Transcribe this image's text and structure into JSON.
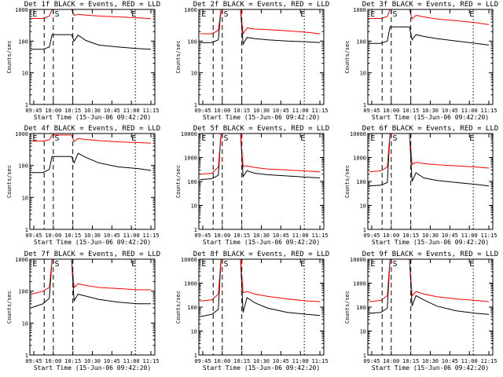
{
  "chart_data": [
    {
      "type": "line",
      "title": "Det 1f BLACK = Events, RED = LLD",
      "xlabel": "Start Time (15-Jun-06 09:42:20)",
      "ylabel": "Counts/sec",
      "yscale": "log",
      "ylim": [
        1,
        1000
      ],
      "xticks": [
        "09:45",
        "10:00",
        "10:15",
        "10:30",
        "10:45",
        "11:00",
        "11:15"
      ],
      "yticks": [
        "1",
        "10",
        "100",
        "1000"
      ],
      "markers": [
        "E",
        "S",
        "E"
      ],
      "series": [
        {
          "color": "#000000",
          "x": [
            "09:43",
            "09:52",
            "09:57",
            "09:59",
            "10:05",
            "10:14",
            "10:16",
            "10:19",
            "10:25",
            "10:35",
            "10:50",
            "11:05",
            "11:15"
          ],
          "y": [
            55,
            55,
            65,
            160,
            160,
            160,
            100,
            155,
            105,
            75,
            65,
            58,
            55
          ]
        },
        {
          "color": "#ff0000",
          "x": [
            "09:43",
            "09:52",
            "09:57",
            "09:59",
            "10:05",
            "10:14",
            "10:16",
            "10:19",
            "10:25",
            "10:35",
            "10:50",
            "11:05",
            "11:15"
          ],
          "y": [
            520,
            520,
            620,
            1000,
            1000,
            1000,
            650,
            700,
            660,
            620,
            580,
            540,
            510
          ]
        }
      ]
    },
    {
      "type": "line",
      "title": "Det 2f BLACK = Events, RED = LLD",
      "xlabel": "Start Time (15-Jun-06 09:42:20)",
      "ylabel": "Counts/sec",
      "yscale": "log",
      "ylim": [
        1,
        1000
      ],
      "xticks": [
        "09:45",
        "10:00",
        "10:15",
        "10:30",
        "10:45",
        "11:00",
        "11:15"
      ],
      "yticks": [
        "1",
        "10",
        "100",
        "1000"
      ],
      "markers": [
        "E",
        "S",
        "E"
      ],
      "series": [
        {
          "color": "#000000",
          "x": [
            "09:43",
            "09:52",
            "09:57",
            "09:59",
            "10:05",
            "10:14",
            "10:16",
            "10:19",
            "10:25",
            "10:35",
            "10:50",
            "11:05",
            "11:15"
          ],
          "y": [
            90,
            90,
            110,
            1000,
            1000,
            1000,
            80,
            130,
            120,
            110,
            100,
            95,
            90
          ]
        },
        {
          "color": "#ff0000",
          "x": [
            "09:43",
            "09:52",
            "09:57",
            "09:59",
            "10:05",
            "10:14",
            "10:16",
            "10:19",
            "10:25",
            "10:35",
            "10:50",
            "11:05",
            "11:15"
          ],
          "y": [
            170,
            170,
            220,
            1000,
            1000,
            1000,
            170,
            260,
            240,
            230,
            210,
            190,
            170
          ]
        }
      ]
    },
    {
      "type": "line",
      "title": "Det 3f BLACK = Events, RED = LLD",
      "xlabel": "Start Time (15-Jun-06 09:42:20)",
      "ylabel": "Counts/sec",
      "yscale": "log",
      "ylim": [
        1,
        1000
      ],
      "xticks": [
        "09:45",
        "10:00",
        "10:15",
        "10:30",
        "10:45",
        "11:00",
        "11:15"
      ],
      "yticks": [
        "1",
        "10",
        "100",
        "1000"
      ],
      "markers": [
        "E",
        "S",
        "E"
      ],
      "series": [
        {
          "color": "#000000",
          "x": [
            "09:43",
            "09:52",
            "09:57",
            "09:59",
            "10:05",
            "10:14",
            "10:16",
            "10:19",
            "10:25",
            "10:35",
            "10:50",
            "11:05",
            "11:15"
          ],
          "y": [
            85,
            85,
            100,
            280,
            280,
            280,
            110,
            160,
            140,
            120,
            100,
            85,
            75
          ]
        },
        {
          "color": "#ff0000",
          "x": [
            "09:43",
            "09:52",
            "09:57",
            "09:59",
            "10:05",
            "10:14",
            "10:16",
            "10:19",
            "10:25",
            "10:35",
            "10:50",
            "11:05",
            "11:15"
          ],
          "y": [
            520,
            520,
            600,
            1000,
            1000,
            1000,
            500,
            650,
            580,
            500,
            440,
            380,
            330
          ]
        }
      ]
    },
    {
      "type": "line",
      "title": "Det 4f BLACK = Events, RED = LLD",
      "xlabel": "Start Time (15-Jun-06 09:42:20)",
      "ylabel": "Counts/sec",
      "yscale": "log",
      "ylim": [
        1,
        1000
      ],
      "xticks": [
        "09:45",
        "10:00",
        "10:15",
        "10:30",
        "10:45",
        "11:00",
        "11:15"
      ],
      "yticks": [
        "1",
        "10",
        "100",
        "1000"
      ],
      "markers": [
        "E",
        "S",
        "E"
      ],
      "series": [
        {
          "color": "#000000",
          "x": [
            "09:43",
            "09:52",
            "09:57",
            "09:59",
            "10:05",
            "10:14",
            "10:16",
            "10:19",
            "10:25",
            "10:35",
            "10:50",
            "11:05",
            "11:15"
          ],
          "y": [
            60,
            60,
            75,
            190,
            190,
            190,
            120,
            240,
            180,
            120,
            90,
            80,
            70
          ]
        },
        {
          "color": "#ff0000",
          "x": [
            "09:43",
            "09:52",
            "09:57",
            "09:59",
            "10:05",
            "10:14",
            "10:16",
            "10:19",
            "10:25",
            "10:35",
            "10:50",
            "11:05",
            "11:15"
          ],
          "y": [
            580,
            580,
            640,
            900,
            900,
            900,
            560,
            700,
            650,
            600,
            550,
            520,
            500
          ]
        }
      ]
    },
    {
      "type": "line",
      "title": "Det 5f BLACK = Events, RED = LLD",
      "xlabel": "Start Time (15-Jun-06 09:42:20)",
      "ylabel": "Counts/sec",
      "yscale": "log",
      "ylim": [
        1,
        10000
      ],
      "xticks": [
        "09:45",
        "10:00",
        "10:15",
        "10:30",
        "10:45",
        "11:00",
        "11:15"
      ],
      "yticks": [
        "1",
        "10",
        "100",
        "1000",
        "10000"
      ],
      "markers": [
        "E",
        "S",
        "E"
      ],
      "series": [
        {
          "color": "#000000",
          "x": [
            "09:43",
            "09:52",
            "09:57",
            "09:59",
            "10:05",
            "10:14",
            "10:16",
            "10:19",
            "10:25",
            "10:35",
            "10:50",
            "11:05",
            "11:15"
          ],
          "y": [
            120,
            130,
            180,
            10000,
            10000,
            10000,
            160,
            280,
            220,
            190,
            170,
            150,
            140
          ]
        },
        {
          "color": "#ff0000",
          "x": [
            "09:43",
            "09:52",
            "09:57",
            "09:59",
            "10:05",
            "10:14",
            "10:16",
            "10:19",
            "10:25",
            "10:35",
            "10:50",
            "11:05",
            "11:15"
          ],
          "y": [
            200,
            220,
            400,
            10000,
            10000,
            10000,
            420,
            450,
            380,
            330,
            300,
            270,
            250
          ]
        }
      ]
    },
    {
      "type": "line",
      "title": "Det 6f BLACK = Events, RED = LLD",
      "xlabel": "Start Time (15-Jun-06 09:42:20)",
      "ylabel": "Counts/sec",
      "yscale": "log",
      "ylim": [
        1,
        10000
      ],
      "xticks": [
        "09:45",
        "10:00",
        "10:15",
        "10:30",
        "10:45",
        "11:00",
        "11:15"
      ],
      "yticks": [
        "1",
        "10",
        "100",
        "1000",
        "10000"
      ],
      "markers": [
        "E",
        "S",
        "E"
      ],
      "series": [
        {
          "color": "#000000",
          "x": [
            "09:43",
            "09:52",
            "09:57",
            "09:59",
            "10:05",
            "10:14",
            "10:16",
            "10:19",
            "10:25",
            "10:35",
            "10:50",
            "11:05",
            "11:15"
          ],
          "y": [
            65,
            70,
            90,
            10000,
            10000,
            10000,
            100,
            230,
            140,
            110,
            90,
            75,
            65
          ]
        },
        {
          "color": "#ff0000",
          "x": [
            "09:43",
            "09:52",
            "09:57",
            "09:59",
            "10:05",
            "10:14",
            "10:16",
            "10:19",
            "10:25",
            "10:35",
            "10:50",
            "11:05",
            "11:15"
          ],
          "y": [
            250,
            280,
            400,
            10000,
            10000,
            10000,
            520,
            620,
            560,
            500,
            450,
            400,
            360
          ]
        }
      ]
    },
    {
      "type": "line",
      "title": "Det 7f BLACK = Events, RED = LLD",
      "xlabel": "Start Time (15-Jun-06 09:42:20)",
      "ylabel": "Counts/sec",
      "yscale": "log",
      "ylim": [
        1,
        1000
      ],
      "xticks": [
        "09:45",
        "10:00",
        "10:15",
        "10:30",
        "10:45",
        "11:00",
        "11:15"
      ],
      "yticks": [
        "1",
        "10",
        "100",
        "1000"
      ],
      "markers": [
        "E",
        "S",
        "E"
      ],
      "series": [
        {
          "color": "#000000",
          "x": [
            "09:43",
            "09:52",
            "09:57",
            "09:59",
            "10:05",
            "10:14",
            "10:16",
            "10:19",
            "10:25",
            "10:35",
            "10:50",
            "11:05",
            "11:15"
          ],
          "y": [
            30,
            40,
            60,
            1000,
            1000,
            1000,
            50,
            80,
            70,
            55,
            45,
            40,
            40
          ]
        },
        {
          "color": "#ff0000",
          "x": [
            "09:43",
            "09:52",
            "09:57",
            "09:59",
            "10:05",
            "10:14",
            "10:16",
            "10:19",
            "10:25",
            "10:35",
            "10:50",
            "11:05",
            "11:15"
          ],
          "y": [
            80,
            100,
            130,
            1000,
            1000,
            1000,
            130,
            170,
            150,
            130,
            120,
            110,
            110
          ]
        }
      ]
    },
    {
      "type": "line",
      "title": "Det 8f BLACK = Events, RED = LLD",
      "xlabel": "Start Time (15-Jun-06 09:42:20)",
      "ylabel": "Counts/sec",
      "yscale": "log",
      "ylim": [
        1,
        10000
      ],
      "xticks": [
        "09:45",
        "10:00",
        "10:15",
        "10:30",
        "10:45",
        "11:00",
        "11:15"
      ],
      "yticks": [
        "1",
        "10",
        "100",
        "1000",
        "10000"
      ],
      "markers": [
        "E",
        "S",
        "E"
      ],
      "series": [
        {
          "color": "#000000",
          "x": [
            "09:43",
            "09:52",
            "09:57",
            "09:59",
            "10:05",
            "10:14",
            "10:16",
            "10:19",
            "10:25",
            "10:35",
            "10:50",
            "11:05",
            "11:15"
          ],
          "y": [
            40,
            50,
            80,
            10000,
            10000,
            10000,
            60,
            250,
            150,
            90,
            60,
            50,
            45
          ]
        },
        {
          "color": "#ff0000",
          "x": [
            "09:43",
            "09:52",
            "09:57",
            "09:59",
            "10:05",
            "10:14",
            "10:16",
            "10:19",
            "10:25",
            "10:35",
            "10:50",
            "11:05",
            "11:15"
          ],
          "y": [
            180,
            200,
            350,
            10000,
            10000,
            10000,
            400,
            450,
            350,
            280,
            220,
            180,
            170
          ]
        }
      ]
    },
    {
      "type": "line",
      "title": "Det 9f BLACK = Events, RED = LLD",
      "xlabel": "Start Time (15-Jun-06 09:42:20)",
      "ylabel": "Counts/sec",
      "yscale": "log",
      "ylim": [
        1,
        10000
      ],
      "xticks": [
        "09:45",
        "10:00",
        "10:15",
        "10:30",
        "10:45",
        "11:00",
        "11:15"
      ],
      "yticks": [
        "1",
        "10",
        "100",
        "1000",
        "10000"
      ],
      "markers": [
        "E",
        "S",
        "E"
      ],
      "series": [
        {
          "color": "#000000",
          "x": [
            "09:43",
            "09:52",
            "09:57",
            "09:59",
            "10:05",
            "10:14",
            "10:16",
            "10:19",
            "10:25",
            "10:35",
            "10:50",
            "11:05",
            "11:15"
          ],
          "y": [
            55,
            60,
            90,
            10000,
            10000,
            10000,
            110,
            300,
            200,
            110,
            70,
            55,
            50
          ]
        },
        {
          "color": "#ff0000",
          "x": [
            "09:43",
            "09:52",
            "09:57",
            "09:59",
            "10:05",
            "10:14",
            "10:16",
            "10:19",
            "10:25",
            "10:35",
            "10:50",
            "11:05",
            "11:15"
          ],
          "y": [
            170,
            190,
            300,
            10000,
            10000,
            10000,
            300,
            450,
            350,
            270,
            220,
            190,
            170
          ]
        }
      ]
    }
  ]
}
